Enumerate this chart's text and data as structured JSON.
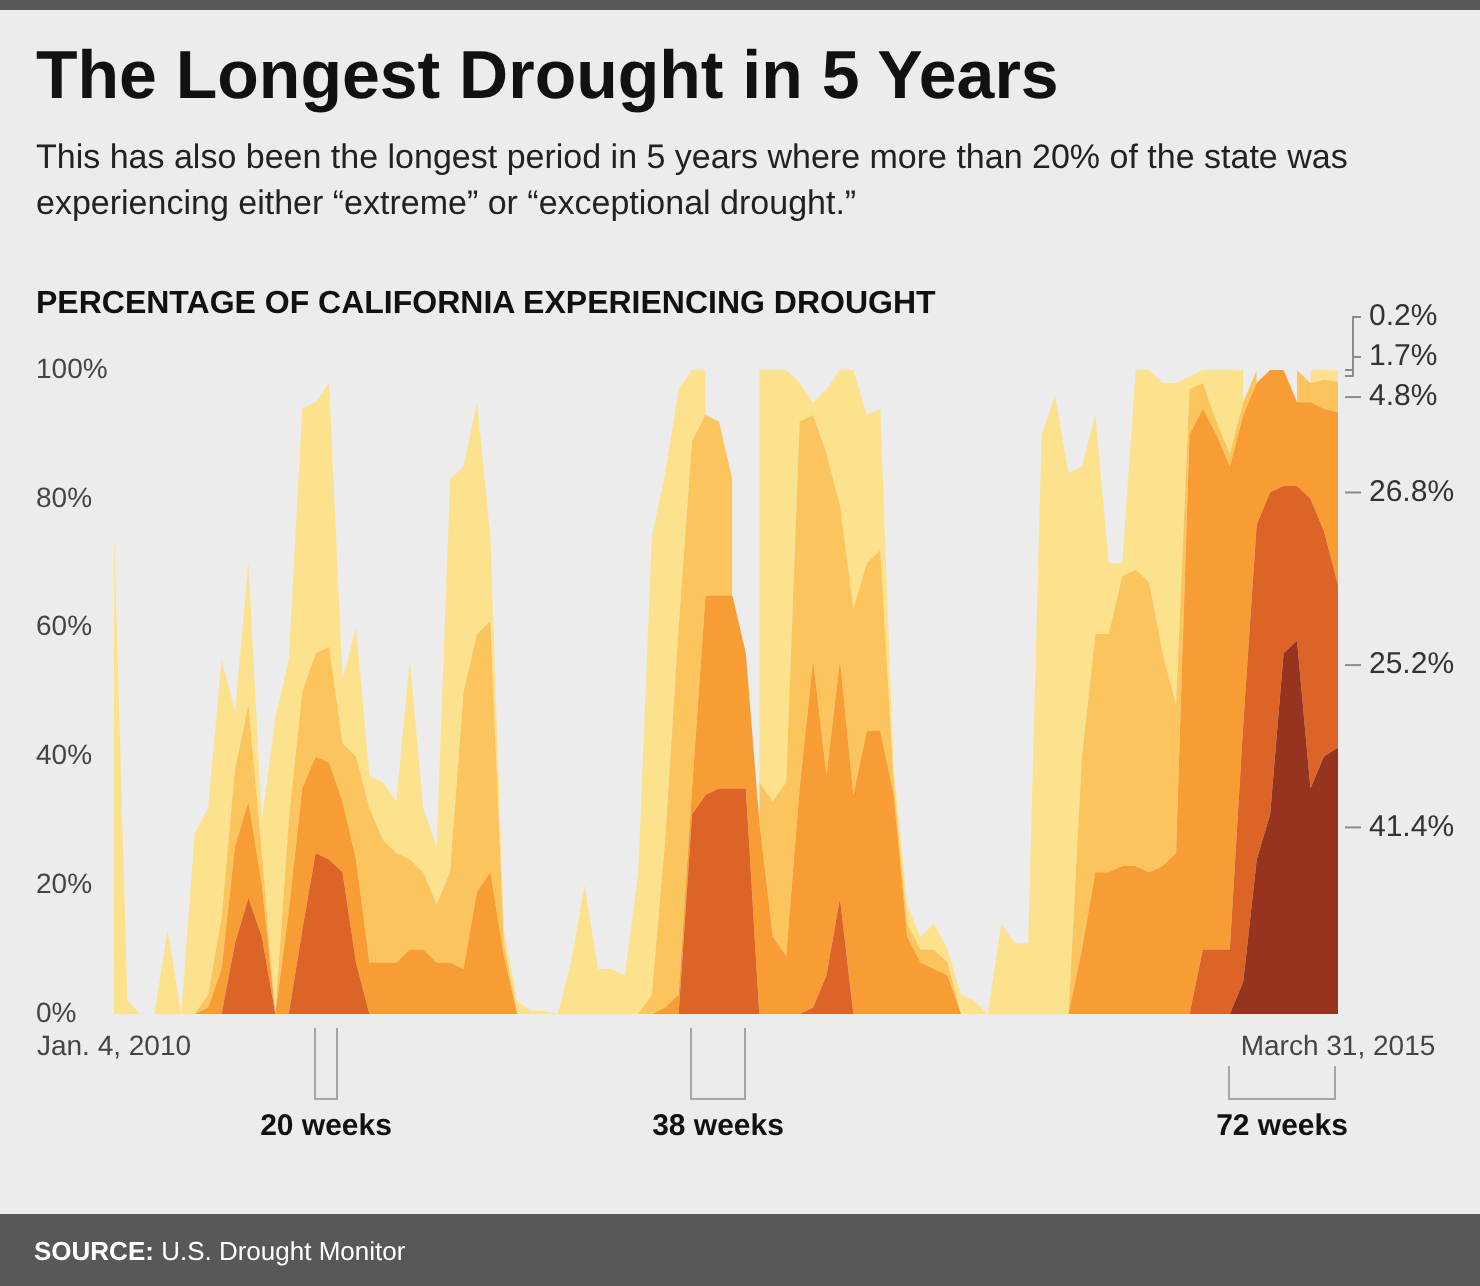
{
  "chart_data": {
    "type": "area",
    "stacked": true,
    "title": "The Longest Drought in 5 Years",
    "subtitle": "This has also been the longest period in 5 years where more than 20% of the state was experiencing either “extreme” or “exceptional drought.”",
    "ylabel": "PERCENTAGE OF CALIFORNIA EXPERIENCING DROUGHT",
    "x": [
      "2010-01-04",
      "2010-01-25",
      "2010-02-15",
      "2010-03-08",
      "2010-03-29",
      "2010-04-19",
      "2010-05-10",
      "2010-05-31",
      "2010-06-21",
      "2010-07-12",
      "2010-08-02",
      "2010-08-23",
      "2010-09-13",
      "2010-10-04",
      "2010-10-25",
      "2010-11-15",
      "2010-12-06",
      "2010-12-27",
      "2011-01-17",
      "2011-02-07",
      "2011-02-28",
      "2011-03-21",
      "2011-04-11",
      "2011-05-02",
      "2011-05-23",
      "2011-06-13",
      "2011-07-04",
      "2011-07-25",
      "2011-08-15",
      "2011-09-05",
      "2011-09-26",
      "2011-10-17",
      "2011-11-07",
      "2011-11-28",
      "2011-12-19",
      "2012-01-09",
      "2012-01-30",
      "2012-02-20",
      "2012-03-12",
      "2012-04-02",
      "2012-04-23",
      "2012-05-14",
      "2012-06-04",
      "2012-06-25",
      "2012-07-16",
      "2012-08-06",
      "2012-08-27",
      "2012-09-17",
      "2012-10-08",
      "2012-10-29",
      "2012-11-19",
      "2012-12-10",
      "2012-12-31",
      "2013-01-21",
      "2013-02-11",
      "2013-03-04",
      "2013-03-25",
      "2013-04-15",
      "2013-05-06",
      "2013-05-27",
      "2013-06-17",
      "2013-07-08",
      "2013-07-29",
      "2013-08-19",
      "2013-09-09",
      "2013-09-30",
      "2013-10-21",
      "2013-11-11",
      "2013-12-02",
      "2013-12-23",
      "2014-01-13",
      "2014-02-03",
      "2014-02-24",
      "2014-03-17",
      "2014-04-07",
      "2014-04-28",
      "2014-05-19",
      "2014-06-09",
      "2014-06-30",
      "2014-07-21",
      "2014-08-11",
      "2014-09-01",
      "2014-09-22",
      "2014-10-13",
      "2014-11-03",
      "2014-11-24",
      "2014-12-15",
      "2015-01-05",
      "2015-01-26",
      "2015-02-16",
      "2015-03-09",
      "2015-03-31"
    ],
    "xlim": [
      "2010-01-04",
      "2015-03-31"
    ],
    "xticks": [
      {
        "value": "2010-01-04",
        "label": "Jan. 4, 2010"
      },
      {
        "value": "2015-03-31",
        "label": "March 31, 2015"
      }
    ],
    "ylim": [
      0,
      100
    ],
    "yticks": [
      {
        "value": 0,
        "label": "0%"
      },
      {
        "value": 20,
        "label": "20%"
      },
      {
        "value": 40,
        "label": "40%"
      },
      {
        "value": 60,
        "label": "60%"
      },
      {
        "value": 80,
        "label": "80%"
      },
      {
        "value": 100,
        "label": "100%"
      }
    ],
    "series": [
      {
        "color": "#963420",
        "values": [
          0,
          0,
          0,
          0,
          0,
          0,
          0,
          0,
          0,
          0,
          0,
          0,
          0,
          0,
          0,
          0,
          0,
          0,
          0,
          0,
          0,
          0,
          0,
          0,
          0,
          0,
          0,
          0,
          0,
          0,
          0,
          0,
          0,
          0,
          0,
          0,
          0,
          0,
          0,
          0,
          0,
          0,
          0,
          0,
          0,
          0,
          0,
          0,
          0,
          0,
          0,
          0,
          0,
          0,
          0,
          0,
          0,
          0,
          0,
          0,
          0,
          0,
          0,
          0,
          0,
          0,
          0,
          0,
          0,
          0,
          0,
          0,
          0,
          0,
          0,
          0,
          0,
          0,
          0,
          0,
          0,
          0,
          0,
          0,
          5,
          24,
          31,
          56,
          58,
          35,
          40,
          41.4
        ],
        "value_labels": [
          null,
          null,
          null,
          null,
          null,
          null,
          null,
          null,
          null,
          null,
          null,
          null,
          null,
          null,
          null,
          null,
          null,
          null,
          null,
          null,
          null,
          null,
          null,
          null,
          null,
          null,
          null,
          null,
          null,
          null,
          null,
          null,
          null,
          null,
          null,
          null,
          null,
          null,
          null,
          null,
          null,
          null,
          null,
          null,
          null,
          null,
          null,
          null,
          null,
          null,
          null,
          null,
          null,
          null,
          null,
          null,
          null,
          null,
          null,
          null,
          null,
          null,
          null,
          null,
          null,
          null,
          null,
          null,
          null,
          null,
          null,
          null,
          null,
          null,
          null,
          null,
          null,
          null,
          null,
          null,
          null,
          null,
          null,
          null,
          null,
          null,
          null,
          null,
          null,
          null,
          null,
          "41.4%"
        ]
      },
      {
        "color": "#dc6427",
        "values": [
          0,
          0,
          0,
          0,
          0,
          0,
          0,
          0,
          0,
          11,
          18,
          12,
          0,
          0,
          13,
          25,
          24,
          22,
          8,
          0,
          0,
          0,
          0,
          0,
          0,
          0,
          0,
          0,
          0,
          0,
          0,
          0,
          0,
          0,
          0,
          0,
          0,
          0,
          0,
          0,
          0,
          0,
          0,
          31,
          34,
          35,
          35,
          35,
          0,
          0,
          0,
          0,
          1,
          6,
          18,
          0,
          0,
          0,
          0,
          0,
          0,
          0,
          0,
          0,
          0,
          0,
          0,
          0,
          0,
          0,
          0,
          0,
          0,
          0,
          0,
          0,
          0,
          0,
          0,
          0,
          0,
          10,
          10,
          10,
          40,
          52,
          50,
          26,
          24,
          45,
          35,
          25.2
        ],
        "value_labels": [
          null,
          null,
          null,
          null,
          null,
          null,
          null,
          null,
          null,
          null,
          null,
          null,
          null,
          null,
          null,
          null,
          null,
          null,
          null,
          null,
          null,
          null,
          null,
          null,
          null,
          null,
          null,
          null,
          null,
          null,
          null,
          null,
          null,
          null,
          null,
          null,
          null,
          null,
          null,
          null,
          null,
          null,
          null,
          null,
          null,
          null,
          null,
          null,
          null,
          null,
          null,
          null,
          null,
          null,
          null,
          null,
          null,
          null,
          null,
          null,
          null,
          null,
          null,
          null,
          null,
          null,
          null,
          null,
          null,
          null,
          null,
          null,
          null,
          null,
          null,
          null,
          null,
          null,
          null,
          null,
          null,
          null,
          null,
          null,
          null,
          null,
          null,
          null,
          null,
          null,
          null,
          "25.2%"
        ]
      },
      {
        "color": "#f79d33",
        "values": [
          0,
          0,
          0,
          0,
          0,
          0,
          0,
          1,
          7,
          15,
          15,
          8,
          0,
          16,
          22,
          15,
          15,
          11,
          16,
          8,
          8,
          8,
          10,
          10,
          8,
          8,
          7,
          19,
          22,
          9,
          0,
          0,
          0,
          0,
          0,
          0,
          0,
          0,
          0,
          0,
          0,
          1,
          3,
          4,
          31,
          30,
          30,
          21,
          30,
          12,
          9,
          35,
          54,
          31,
          37,
          34,
          44,
          44,
          34,
          12,
          8,
          7,
          6,
          0,
          0,
          0,
          0,
          0,
          0,
          0,
          0,
          0,
          10,
          22,
          22,
          23,
          23,
          22,
          23,
          25,
          90,
          84,
          80,
          75,
          48,
          22,
          19,
          18,
          13,
          15,
          19,
          26.8
        ],
        "value_labels": [
          null,
          null,
          null,
          null,
          null,
          null,
          null,
          null,
          null,
          null,
          null,
          null,
          null,
          null,
          null,
          null,
          null,
          null,
          null,
          null,
          null,
          null,
          null,
          null,
          null,
          null,
          null,
          null,
          null,
          null,
          null,
          null,
          null,
          null,
          null,
          null,
          null,
          null,
          null,
          null,
          null,
          null,
          null,
          null,
          null,
          null,
          null,
          null,
          null,
          null,
          null,
          null,
          null,
          null,
          null,
          null,
          null,
          null,
          null,
          null,
          null,
          null,
          null,
          null,
          null,
          null,
          null,
          null,
          null,
          null,
          null,
          null,
          null,
          null,
          null,
          null,
          null,
          null,
          null,
          null,
          null,
          null,
          null,
          null,
          null,
          null,
          null,
          null,
          null,
          null,
          null,
          "26.8%"
        ]
      },
      {
        "color": "#fcc45c",
        "values": [
          0,
          0,
          0,
          0,
          0,
          0,
          0,
          2,
          8,
          12,
          15,
          5,
          0,
          14,
          15,
          16,
          18,
          9,
          16,
          24,
          19,
          17,
          14,
          12,
          9,
          14,
          43,
          40,
          39,
          2,
          0,
          0,
          0,
          0,
          0,
          0,
          0,
          0,
          0,
          0,
          3,
          26,
          57,
          54,
          28,
          27,
          18,
          null,
          6,
          21,
          27,
          57,
          38,
          50,
          24,
          29,
          26,
          28,
          2,
          2,
          2,
          3,
          2,
          0,
          0,
          0,
          0,
          0,
          0,
          0,
          0,
          0,
          30,
          37,
          37,
          45,
          46,
          45,
          33,
          23,
          7,
          4,
          2,
          2,
          2,
          2,
          null,
          null,
          5,
          3,
          4.5,
          4.8
        ],
        "value_labels": [
          null,
          null,
          null,
          null,
          null,
          null,
          null,
          null,
          null,
          null,
          null,
          null,
          null,
          null,
          null,
          null,
          null,
          null,
          null,
          null,
          null,
          null,
          null,
          null,
          null,
          null,
          null,
          null,
          null,
          null,
          null,
          null,
          null,
          null,
          null,
          null,
          null,
          null,
          null,
          null,
          null,
          null,
          null,
          null,
          null,
          null,
          null,
          null,
          null,
          null,
          null,
          null,
          null,
          null,
          null,
          null,
          null,
          null,
          null,
          null,
          null,
          null,
          null,
          null,
          null,
          null,
          null,
          null,
          null,
          null,
          null,
          null,
          null,
          null,
          null,
          null,
          null,
          null,
          null,
          null,
          null,
          null,
          null,
          null,
          null,
          null,
          null,
          null,
          null,
          null,
          null,
          "4.8%"
        ]
      },
      {
        "color": "#fde28e",
        "values": [
          75,
          2,
          0,
          0,
          13,
          0,
          28,
          29,
          40,
          9,
          22,
          5,
          46,
          25,
          44,
          39,
          41,
          10,
          20,
          5,
          9,
          8,
          31,
          10,
          9,
          61,
          35,
          36,
          13,
          2,
          2,
          0.5,
          0.5,
          0,
          8,
          20,
          7,
          7,
          6,
          22,
          71,
          57,
          37,
          11,
          7,
          null,
          null,
          null,
          64,
          67,
          64,
          6,
          2,
          10,
          21,
          37,
          23,
          22,
          2,
          3,
          2,
          4,
          2,
          3,
          2,
          0,
          14,
          11,
          11,
          90,
          96,
          84,
          45,
          34,
          11,
          2,
          31,
          33,
          42,
          50,
          2,
          2,
          8,
          13,
          5,
          null,
          null,
          null,
          null,
          2,
          1.5,
          1.7
        ],
        "value_labels": [
          null,
          null,
          null,
          null,
          null,
          null,
          null,
          null,
          null,
          null,
          null,
          null,
          null,
          null,
          null,
          null,
          null,
          null,
          null,
          null,
          null,
          null,
          null,
          null,
          null,
          null,
          null,
          null,
          null,
          null,
          null,
          null,
          null,
          null,
          null,
          null,
          null,
          null,
          null,
          null,
          null,
          null,
          null,
          null,
          null,
          null,
          null,
          null,
          null,
          null,
          null,
          null,
          null,
          null,
          null,
          null,
          null,
          null,
          null,
          null,
          null,
          null,
          null,
          null,
          null,
          null,
          null,
          null,
          null,
          null,
          null,
          null,
          null,
          null,
          null,
          null,
          null,
          null,
          null,
          null,
          null,
          null,
          null,
          null,
          null,
          null,
          null,
          null,
          null,
          null,
          null,
          "1.7%"
        ]
      }
    ],
    "annotations": [
      "0.2%",
      "20 weeks",
      "38 weeks",
      "72 weeks",
      "SOURCE: U.S. Drought Monitor"
    ]
  }
}
